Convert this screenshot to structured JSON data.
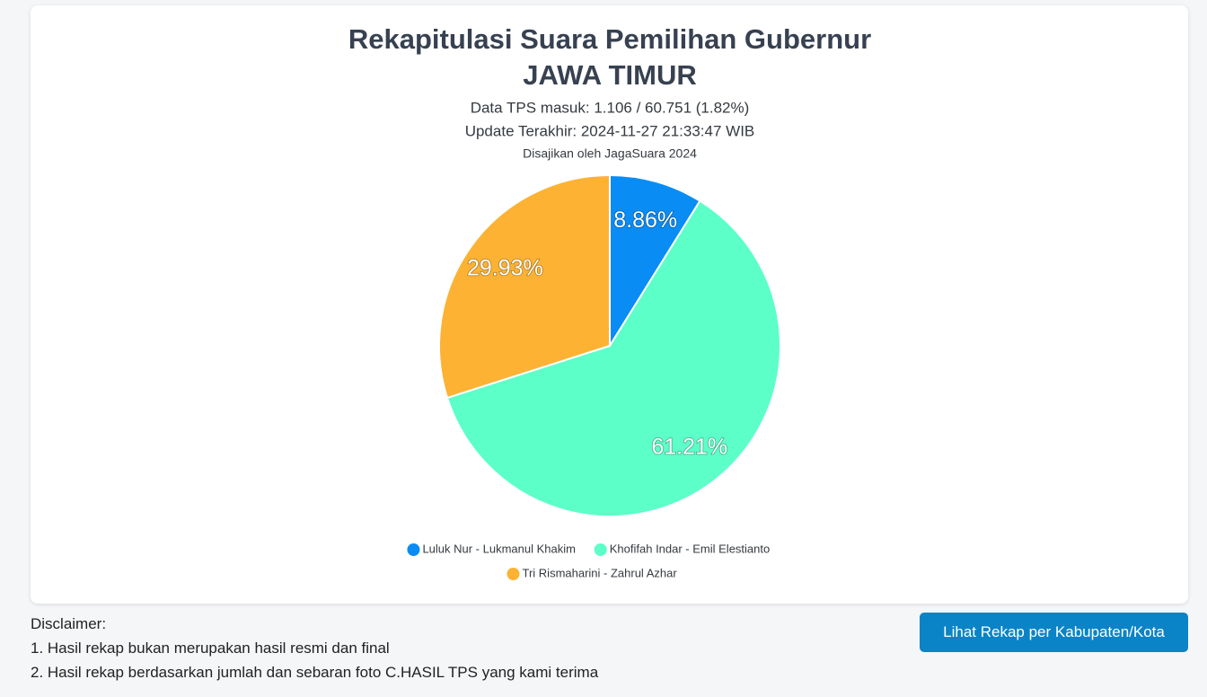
{
  "chart_data": {
    "type": "pie",
    "title": "Rekapitulasi Suara Pemilihan Gubernur",
    "subtitle": "JAWA TIMUR",
    "info": [
      "Data TPS masuk: 1.106 / 60.751 (1.82%)",
      "Update Terakhir: 2024-11-27 21:33:47 WIB"
    ],
    "credit": "Disajikan oleh JagaSuara 2024",
    "categories": [
      "Luluk Nur - Lukmanul Khakim",
      "Khofifah Indar - Emil Elestianto",
      "Tri Rismaharini - Zahrul Azhar"
    ],
    "values": [
      8.86,
      61.21,
      29.93
    ],
    "value_labels": [
      "8.86%",
      "61.21%",
      "29.93%"
    ],
    "colors": [
      "#0a8cf5",
      "#5cffc8",
      "#fdb233"
    ]
  },
  "disclaimer": {
    "heading": "Disclaimer:",
    "items": [
      "1. Hasil rekap bukan merupakan hasil resmi dan final",
      "2. Hasil rekap berdasarkan jumlah dan sebaran foto C.HASIL TPS yang kami terima"
    ]
  },
  "button": "Lihat Rekap per Kabupaten/Kota"
}
